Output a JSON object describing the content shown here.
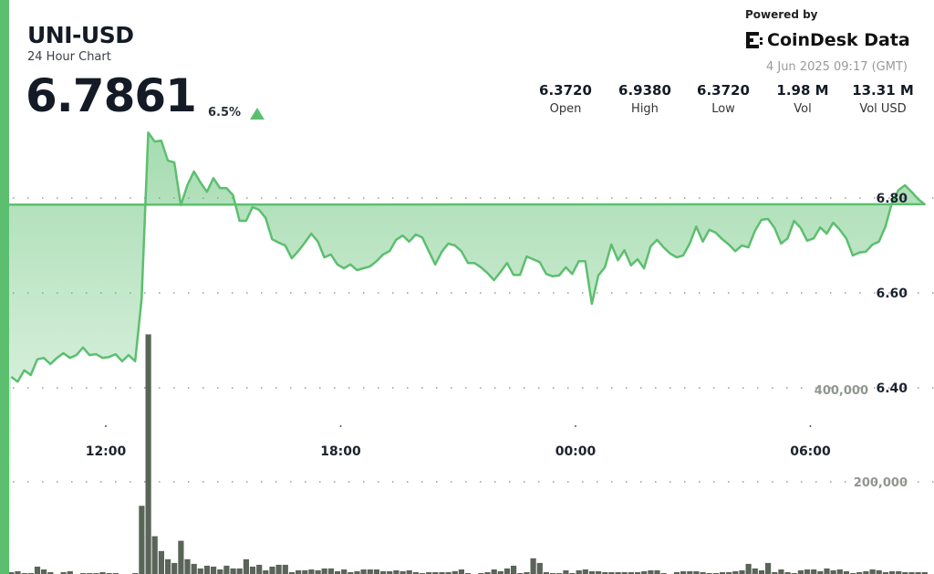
{
  "header": {
    "pair": "UNI-USD",
    "subtitle": "24 Hour Chart",
    "price": "6.7861",
    "change": "6.5%",
    "change_direction": "up",
    "powered_by": "Powered by",
    "brand": "CoinDesk Data",
    "timestamp": "4 Jun 2025 09:17 (GMT)"
  },
  "stats": [
    {
      "value": "6.3720",
      "label": "Open"
    },
    {
      "value": "6.9380",
      "label": "High"
    },
    {
      "value": "6.3720",
      "label": "Low"
    },
    {
      "value": "1.98 M",
      "label": "Vol"
    },
    {
      "value": "13.31 M",
      "label": "Vol USD"
    }
  ],
  "colors": {
    "accent": "#5cbf6f",
    "volume": "#5a6459",
    "text": "#141b26"
  },
  "chart_data": {
    "type": "area",
    "x_ticks": [
      "12:00",
      "18:00",
      "00:00",
      "06:00"
    ],
    "price_ticks": [
      "6.40",
      "6.60",
      "6.80"
    ],
    "price_tick_values": [
      6.4,
      6.6,
      6.8
    ],
    "volume_ticks": [
      "200,000",
      "400,000"
    ],
    "volume_tick_values": [
      200000,
      400000
    ],
    "grid": "dotted horizontal",
    "x": [
      "09:35",
      "09:45",
      "09:55",
      "10:05",
      "10:15",
      "10:25",
      "10:35",
      "10:45",
      "10:55",
      "11:05",
      "11:15",
      "11:25",
      "11:35",
      "11:45",
      "11:55",
      "12:05",
      "12:15",
      "12:25",
      "12:35",
      "12:45",
      "12:55",
      "13:05",
      "13:15",
      "13:25",
      "13:35",
      "13:45",
      "13:55",
      "14:05",
      "14:15",
      "14:25",
      "14:35",
      "14:45",
      "14:55",
      "15:05",
      "15:15",
      "15:25",
      "15:35",
      "15:45",
      "15:55",
      "16:05",
      "16:15",
      "16:25",
      "16:35",
      "16:45",
      "16:55",
      "17:05",
      "17:15",
      "17:25",
      "17:35",
      "17:45",
      "17:55",
      "18:05",
      "18:15",
      "18:25",
      "18:35",
      "18:45",
      "18:55",
      "19:05",
      "19:15",
      "19:25",
      "19:35",
      "19:45",
      "19:55",
      "20:05",
      "20:15",
      "20:25",
      "20:35",
      "20:45",
      "20:55",
      "21:05",
      "21:15",
      "21:25",
      "21:35",
      "21:45",
      "21:55",
      "22:05",
      "22:15",
      "22:25",
      "22:35",
      "22:45",
      "22:55",
      "23:05",
      "23:15",
      "23:25",
      "23:35",
      "23:45",
      "23:55",
      "00:05",
      "00:15",
      "00:25",
      "00:35",
      "00:45",
      "00:55",
      "01:05",
      "01:15",
      "01:25",
      "01:35",
      "01:45",
      "01:55",
      "02:05",
      "02:15",
      "02:25",
      "02:35",
      "02:45",
      "02:55",
      "03:05",
      "03:15",
      "03:25",
      "03:35",
      "03:45",
      "03:55",
      "04:05",
      "04:15",
      "04:25",
      "04:35",
      "04:45",
      "04:55",
      "05:05",
      "05:15",
      "05:25",
      "05:35",
      "05:45",
      "05:55",
      "06:05",
      "06:15",
      "06:25",
      "06:35",
      "06:45",
      "06:55",
      "07:05",
      "07:15",
      "07:25",
      "07:35",
      "07:45",
      "07:55",
      "08:05",
      "08:15",
      "08:25",
      "08:35",
      "08:45",
      "08:55",
      "09:05"
    ],
    "price": [
      6.423,
      6.413,
      6.437,
      6.427,
      6.46,
      6.463,
      6.45,
      6.463,
      6.473,
      6.463,
      6.469,
      6.485,
      6.469,
      6.471,
      6.463,
      6.465,
      6.471,
      6.456,
      6.469,
      6.456,
      6.588,
      6.938,
      6.919,
      6.921,
      6.879,
      6.875,
      6.785,
      6.827,
      6.856,
      6.833,
      6.813,
      6.842,
      6.821,
      6.821,
      6.806,
      6.752,
      6.752,
      6.781,
      6.775,
      6.758,
      6.713,
      6.706,
      6.7,
      6.673,
      6.688,
      6.706,
      6.725,
      6.708,
      6.675,
      6.681,
      6.66,
      6.652,
      6.66,
      6.648,
      6.652,
      6.656,
      6.667,
      6.681,
      6.688,
      6.712,
      6.721,
      6.708,
      6.723,
      6.717,
      6.688,
      6.66,
      6.687,
      6.704,
      6.7,
      6.688,
      6.663,
      6.663,
      6.654,
      6.642,
      6.627,
      6.644,
      6.663,
      6.638,
      6.638,
      6.677,
      6.671,
      6.665,
      6.64,
      6.635,
      6.637,
      6.654,
      6.64,
      6.667,
      6.667,
      6.577,
      6.637,
      6.654,
      6.702,
      6.669,
      6.69,
      6.658,
      6.671,
      6.652,
      6.698,
      6.712,
      6.696,
      6.683,
      6.675,
      6.679,
      6.704,
      6.74,
      6.708,
      6.733,
      6.727,
      6.713,
      6.702,
      6.688,
      6.7,
      6.696,
      6.731,
      6.754,
      6.756,
      6.737,
      6.704,
      6.715,
      6.752,
      6.737,
      6.71,
      6.715,
      6.738,
      6.725,
      6.748,
      6.733,
      6.715,
      6.679,
      6.685,
      6.687,
      6.702,
      6.708,
      6.74,
      6.79,
      6.817,
      6.827,
      6.813,
      6.798,
      6.787,
      6.786
    ],
    "volume": [
      4000,
      6000,
      2000,
      2000,
      16000,
      10000,
      4000,
      0,
      4000,
      6000,
      0,
      2000,
      2000,
      2000,
      4000,
      2000,
      2000,
      0,
      0,
      2000,
      148000,
      520000,
      82000,
      50000,
      32000,
      24000,
      72000,
      32000,
      22000,
      12000,
      18000,
      16000,
      10000,
      18000,
      12000,
      12000,
      32000,
      16000,
      20000,
      8000,
      16000,
      20000,
      20000,
      4000,
      8000,
      8000,
      10000,
      8000,
      12000,
      12000,
      6000,
      10000,
      4000,
      6000,
      10000,
      10000,
      10000,
      6000,
      6000,
      8000,
      6000,
      8000,
      4000,
      2000,
      4000,
      4000,
      4000,
      4000,
      6000,
      10000,
      2000,
      0,
      2000,
      4000,
      10000,
      6000,
      12000,
      18000,
      2000,
      4000,
      34000,
      24000,
      4000,
      2000,
      2000,
      8000,
      2000,
      8000,
      10000,
      6000,
      6000,
      4000,
      4000,
      4000,
      4000,
      4000,
      4000,
      6000,
      8000,
      8000,
      2000,
      0,
      4000,
      6000,
      6000,
      6000,
      4000,
      2000,
      2000,
      4000,
      4000,
      6000,
      8000,
      22000,
      12000,
      8000,
      24000,
      4000,
      10000,
      4000,
      2000,
      8000,
      10000,
      10000,
      6000,
      12000,
      8000,
      10000,
      6000,
      2000,
      4000,
      6000,
      10000,
      8000,
      4000,
      6000,
      6000,
      4000,
      4000,
      4000,
      4000,
      4000
    ]
  }
}
